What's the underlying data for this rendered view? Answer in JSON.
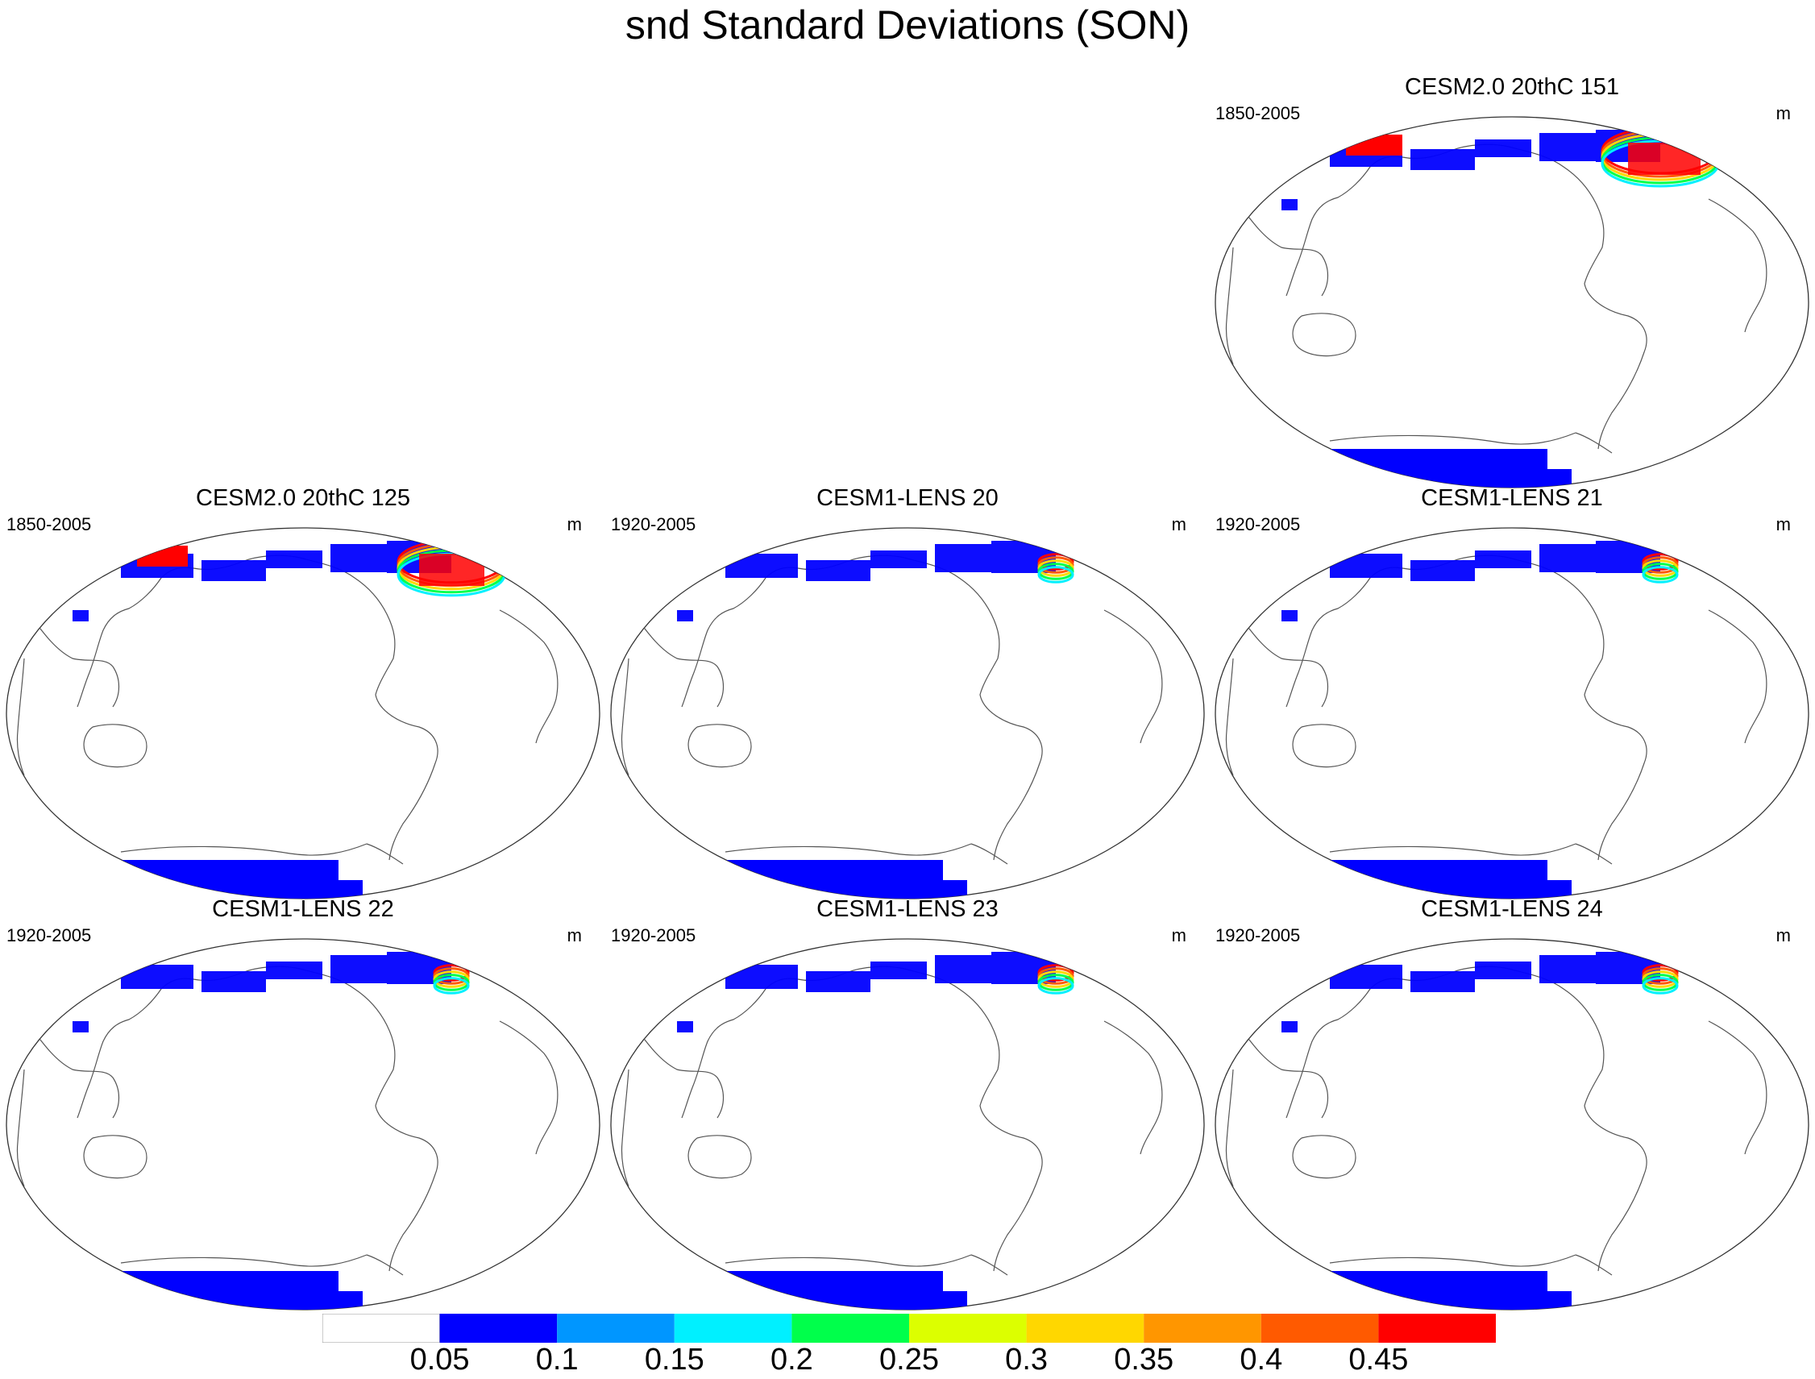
{
  "figure": {
    "title": "snd Standard Deviations (SON)"
  },
  "panels": [
    {
      "id": "p1",
      "title": "CESM2.0 20thC 151",
      "period": "1850-2005",
      "unit": "m",
      "red_extent": 1.0
    },
    {
      "id": "p2",
      "title": "CESM2.0 20thC 125",
      "period": "1850-2005",
      "unit": "m",
      "red_extent": 0.9
    },
    {
      "id": "p3",
      "title": "CESM1-LENS 20",
      "period": "1920-2005",
      "unit": "m",
      "red_extent": 0.15
    },
    {
      "id": "p4",
      "title": "CESM1-LENS 21",
      "period": "1920-2005",
      "unit": "m",
      "red_extent": 0.15
    },
    {
      "id": "p5",
      "title": "CESM1-LENS 22",
      "period": "1920-2005",
      "unit": "m",
      "red_extent": 0.15
    },
    {
      "id": "p6",
      "title": "CESM1-LENS 23",
      "period": "1920-2005",
      "unit": "m",
      "red_extent": 0.15
    },
    {
      "id": "p7",
      "title": "CESM1-LENS 24",
      "period": "1920-2005",
      "unit": "m",
      "red_extent": 0.15
    }
  ],
  "colorbar": {
    "levels": [
      "0.05",
      "0.1",
      "0.15",
      "0.2",
      "0.25",
      "0.3",
      "0.35",
      "0.4",
      "0.45"
    ],
    "colors": [
      "#ffffff",
      "#0000ff",
      "#0096ff",
      "#00f0ff",
      "#00ff4b",
      "#dcff00",
      "#ffd700",
      "#ff9600",
      "#ff5a00",
      "#ff0000"
    ]
  },
  "chart_data": {
    "type": "heatmap",
    "title": "snd Standard Deviations (SON)",
    "variable": "snd",
    "season": "SON",
    "unit": "m",
    "contour_levels": [
      0.05,
      0.1,
      0.15,
      0.2,
      0.25,
      0.3,
      0.35,
      0.4,
      0.45
    ],
    "panels": [
      {
        "name": "CESM2.0 20thC 151",
        "period": "1850-2005"
      },
      {
        "name": "CESM2.0 20thC 125",
        "period": "1850-2005"
      },
      {
        "name": "CESM1-LENS 20",
        "period": "1920-2005"
      },
      {
        "name": "CESM1-LENS 21",
        "period": "1920-2005"
      },
      {
        "name": "CESM1-LENS 22",
        "period": "1920-2005"
      },
      {
        "name": "CESM1-LENS 23",
        "period": "1920-2005"
      },
      {
        "name": "CESM1-LENS 24",
        "period": "1920-2005"
      }
    ]
  }
}
